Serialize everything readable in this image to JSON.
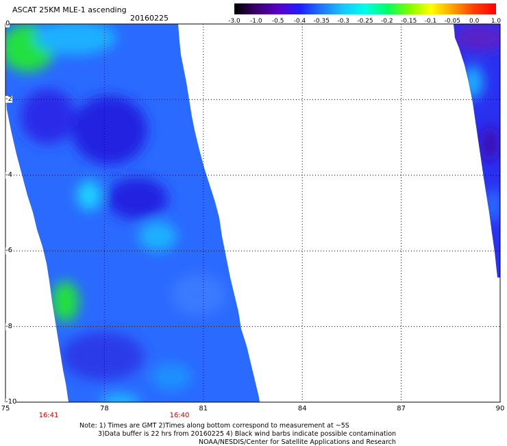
{
  "header": {
    "title": "ASCAT 25KM MLE-1 ascending",
    "date": "20160225"
  },
  "colorbar": {
    "labels": [
      "-3.0",
      "-1.0",
      "-0.5",
      "-0.4",
      "-0.35",
      "-0.3",
      "-0.25",
      "-0.2",
      "-0.15",
      "-0.1",
      "-0.05",
      "0.0",
      "1.0"
    ],
    "colors": [
      "#000000",
      "#3a0070",
      "#5a00c8",
      "#1e1eff",
      "#1e78ff",
      "#14c8ff",
      "#00ffe6",
      "#00ff64",
      "#7dff00",
      "#ffff00",
      "#ffa000",
      "#ff3c00",
      "#ff0000"
    ]
  },
  "map": {
    "x_axis": {
      "range": [
        75,
        90
      ],
      "ticks": [
        "75",
        "78",
        "81",
        "84",
        "87",
        "90"
      ]
    },
    "y_axis": {
      "range": [
        0,
        -10
      ],
      "ticks": [
        "0",
        "-2",
        "-4",
        "-6",
        "-8",
        "-10"
      ]
    },
    "grid": true,
    "swath_times": [
      "16:41",
      "16:40"
    ],
    "swath_colors": {
      "dominant": "#2a6aff",
      "dark": "#2020e0",
      "light": "#1ab0ff",
      "green": "#20e040"
    }
  },
  "footer": {
    "note_line1": "Note: 1) Times are GMT 2)Times along bottom correspond to measurement at ~5S",
    "note_line2": "3)Data buffer is 22 hrs from 20160225 4) Black wind barbs indicate possible contamination",
    "credit": "NOAA/NESDIS/Center for Satellite Applications and Research"
  }
}
